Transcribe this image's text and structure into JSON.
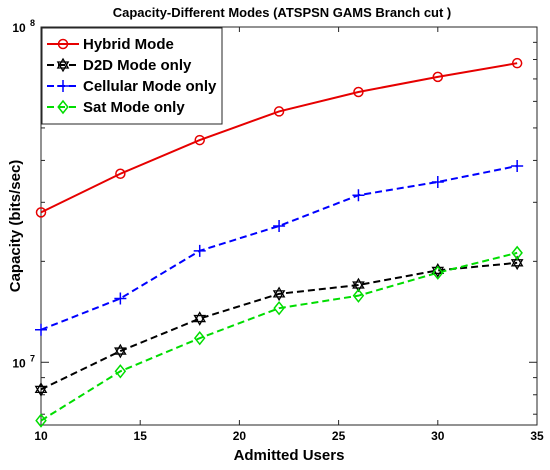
{
  "chart_data": {
    "type": "line",
    "title": "Capacity-Different Modes (ATSPSN GAMS Branch cut )",
    "xlabel": "Admitted Users",
    "ylabel": "Capacity (bits/sec)",
    "xlim": [
      10,
      35
    ],
    "ylim": [
      6500000,
      100000000
    ],
    "yscale": "log",
    "x_ticks": [
      10,
      15,
      20,
      25,
      30,
      35
    ],
    "y_ticks": [
      {
        "base": "10",
        "exp": "7",
        "value": 10000000
      },
      {
        "base": "10",
        "exp": "8",
        "value": 100000000
      }
    ],
    "grid": false,
    "legend_position": "top-left",
    "x": [
      10,
      14,
      18,
      22,
      26,
      30,
      34
    ],
    "series": [
      {
        "name": "Hybrid Mode",
        "color": "#e60000",
        "dash": "solid",
        "marker": "circle",
        "values": [
          28000000,
          36500000,
          46000000,
          56000000,
          64000000,
          71000000,
          78000000
        ]
      },
      {
        "name": "D2D Mode only",
        "color": "#000000",
        "dash": "dashed",
        "marker": "hexagram",
        "values": [
          8300000,
          10800000,
          13500000,
          16000000,
          17000000,
          18800000,
          19800000
        ]
      },
      {
        "name": "Cellular Mode only",
        "color": "#0000ff",
        "dash": "dashed",
        "marker": "plus",
        "values": [
          12500000,
          15500000,
          21500000,
          25500000,
          31500000,
          34500000,
          38500000
        ]
      },
      {
        "name": "Sat Mode only",
        "color": "#00dd00",
        "dash": "dashed",
        "marker": "diamond",
        "values": [
          6700000,
          9400000,
          11800000,
          14500000,
          15800000,
          18500000,
          21200000
        ]
      }
    ]
  }
}
